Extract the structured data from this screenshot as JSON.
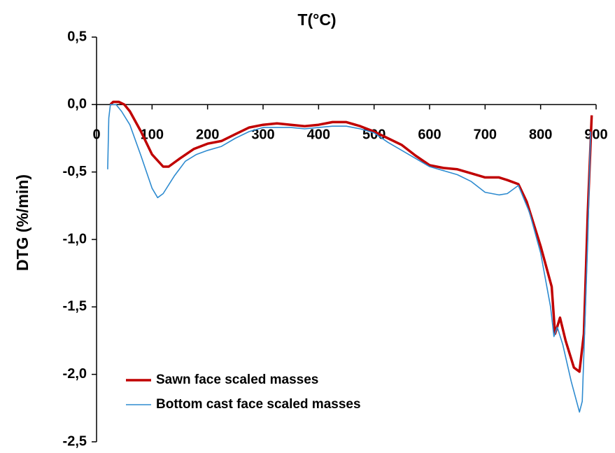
{
  "chart_data": {
    "type": "line",
    "title": "T(°C)",
    "y_label": "DTG (%/min)",
    "xlim": [
      0,
      900
    ],
    "xticks": [
      0,
      100,
      200,
      300,
      400,
      500,
      600,
      700,
      800,
      900
    ],
    "ylim": [
      -2.5,
      0.5
    ],
    "yticks": [
      {
        "value": 0.5,
        "label": "0,5"
      },
      {
        "value": 0,
        "label": "0,0"
      },
      {
        "value": -0.5,
        "label": "-0,5"
      },
      {
        "value": -1,
        "label": "-1,0"
      },
      {
        "value": -1.5,
        "label": "-1,5"
      },
      {
        "value": -2,
        "label": "-2,0"
      },
      {
        "value": -2.5,
        "label": "-2,5"
      }
    ],
    "legend": "lower left",
    "series": [
      {
        "name": "Sawn face scaled masses",
        "color": "#c00000",
        "width": 3.5,
        "x": [
          25,
          30,
          40,
          50,
          60,
          80,
          100,
          120,
          130,
          150,
          175,
          200,
          225,
          250,
          275,
          300,
          325,
          350,
          375,
          400,
          425,
          450,
          475,
          500,
          525,
          550,
          575,
          600,
          625,
          650,
          675,
          700,
          725,
          740,
          760,
          775,
          800,
          820,
          826,
          835,
          845,
          860,
          870,
          878,
          885,
          892
        ],
        "values": [
          0.0,
          0.02,
          0.02,
          0.0,
          -0.05,
          -0.2,
          -0.37,
          -0.46,
          -0.46,
          -0.4,
          -0.33,
          -0.29,
          -0.27,
          -0.22,
          -0.17,
          -0.15,
          -0.14,
          -0.15,
          -0.16,
          -0.15,
          -0.13,
          -0.13,
          -0.16,
          -0.2,
          -0.25,
          -0.3,
          -0.38,
          -0.45,
          -0.47,
          -0.48,
          -0.51,
          -0.54,
          -0.54,
          -0.56,
          -0.59,
          -0.72,
          -1.05,
          -1.35,
          -1.7,
          -1.58,
          -1.75,
          -1.95,
          -1.98,
          -1.7,
          -0.8,
          -0.08
        ]
      },
      {
        "name": "Bottom cast face scaled masses",
        "color": "#2e8bd0",
        "width": 1.6,
        "x": [
          20,
          22,
          25,
          35,
          45,
          60,
          80,
          100,
          110,
          120,
          140,
          160,
          180,
          200,
          225,
          250,
          275,
          300,
          325,
          350,
          375,
          400,
          425,
          450,
          475,
          500,
          525,
          550,
          575,
          600,
          625,
          650,
          675,
          700,
          725,
          740,
          760,
          780,
          800,
          818,
          824,
          830,
          840,
          855,
          870,
          875,
          885,
          890
        ],
        "values": [
          -0.48,
          -0.1,
          0.0,
          0.0,
          -0.05,
          -0.15,
          -0.38,
          -0.62,
          -0.69,
          -0.66,
          -0.53,
          -0.42,
          -0.37,
          -0.34,
          -0.31,
          -0.25,
          -0.2,
          -0.17,
          -0.17,
          -0.17,
          -0.18,
          -0.17,
          -0.16,
          -0.16,
          -0.18,
          -0.21,
          -0.28,
          -0.34,
          -0.4,
          -0.46,
          -0.49,
          -0.52,
          -0.57,
          -0.65,
          -0.67,
          -0.66,
          -0.6,
          -0.8,
          -1.1,
          -1.5,
          -1.72,
          -1.65,
          -1.78,
          -2.05,
          -2.28,
          -2.2,
          -1.0,
          -0.2
        ]
      }
    ]
  }
}
